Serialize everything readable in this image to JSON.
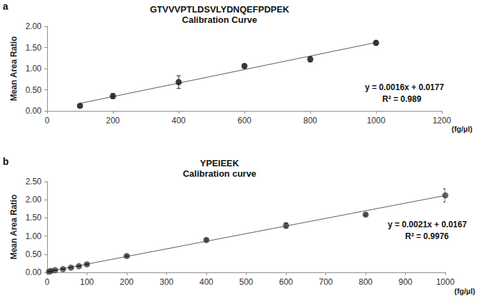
{
  "chart_data": [
    {
      "type": "scatter",
      "panel_label": "a",
      "title": "GTVVVPTLDSVLYDNQEFPDPEK",
      "subtitle": "Calibration Curve",
      "xlabel": "(fg/µl)",
      "ylabel": "Mean Area Ratio",
      "x": [
        100,
        200,
        400,
        600,
        800,
        1000
      ],
      "values": [
        0.12,
        0.35,
        0.68,
        1.06,
        1.22,
        1.61
      ],
      "errors": [
        0.03,
        0.06,
        0.15,
        0.05,
        0.06,
        0.05
      ],
      "color": "#111111",
      "trendline": {
        "slope": 0.0016,
        "intercept": 0.0177,
        "equation": "y = 0.0016x + 0.0177",
        "r2_label": "R² = 0.989"
      },
      "xlim": [
        0,
        1200
      ],
      "xticks": [
        0,
        200,
        400,
        600,
        800,
        1000,
        1200
      ],
      "ylim": [
        0,
        2
      ],
      "yticks": [
        {
          "value": 0,
          "label": "0.00"
        },
        {
          "value": 0.5,
          "label": "0.50"
        },
        {
          "value": 1,
          "label": "1.00"
        },
        {
          "value": 1.5,
          "label": "1.50"
        },
        {
          "value": 2,
          "label": "2.00"
        }
      ],
      "grid": false
    },
    {
      "type": "scatter",
      "panel_label": "b",
      "title": "YPEIEEK",
      "subtitle": "Calibration curve",
      "xlabel": "(fg/µl)",
      "ylabel": "Mean Area Ratio",
      "x": [
        5,
        10,
        20,
        40,
        60,
        80,
        100,
        200,
        400,
        600,
        800,
        1000
      ],
      "values": [
        0.02,
        0.04,
        0.06,
        0.09,
        0.13,
        0.17,
        0.22,
        0.45,
        0.89,
        1.29,
        1.59,
        2.12
      ],
      "errors": [
        0.005,
        0.01,
        0.01,
        0.01,
        0.01,
        0.01,
        0.02,
        0.02,
        0.03,
        0.07,
        0.03,
        0.18
      ],
      "color": "#404040",
      "trendline": {
        "slope": 0.0021,
        "intercept": 0.0167,
        "equation": "y = 0.0021x + 0.0167",
        "r2_label": "R² = 0.9976"
      },
      "xlim": [
        0,
        1000
      ],
      "xticks": [
        0,
        100,
        200,
        300,
        400,
        500,
        600,
        700,
        800,
        900,
        1000
      ],
      "ylim": [
        0,
        2.5
      ],
      "yticks": [
        {
          "value": 0,
          "label": "0.00"
        },
        {
          "value": 0.5,
          "label": "0.50"
        },
        {
          "value": 1,
          "label": "1.00"
        },
        {
          "value": 1.5,
          "label": "1.50"
        },
        {
          "value": 2,
          "label": "2.00"
        },
        {
          "value": 2.5,
          "label": "2.50"
        }
      ],
      "grid": false
    }
  ]
}
